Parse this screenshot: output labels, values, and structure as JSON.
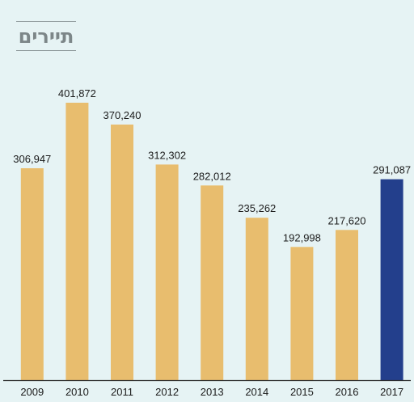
{
  "title": "תיירים",
  "colors": {
    "background": "#e6f3f4",
    "bar": "#e8bd6e",
    "highlight": "#233f8c",
    "axis": "#2a2a2a"
  },
  "chart_data": {
    "type": "bar",
    "title": "תיירים",
    "xlabel": "",
    "ylabel": "",
    "categories": [
      "2009",
      "2010",
      "2011",
      "2012",
      "2013",
      "2014",
      "2015",
      "2016",
      "2017"
    ],
    "values": [
      306947,
      401872,
      370240,
      312302,
      282012,
      235262,
      192998,
      217620,
      291087
    ],
    "labels": [
      "306,947",
      "401,872",
      "370,240",
      "312,302",
      "282,012",
      "235,262",
      "192,998",
      "217,620",
      "291,087"
    ],
    "highlight_category": "2017",
    "ylim": [
      0,
      401872
    ],
    "grid": false,
    "legend": "none"
  }
}
